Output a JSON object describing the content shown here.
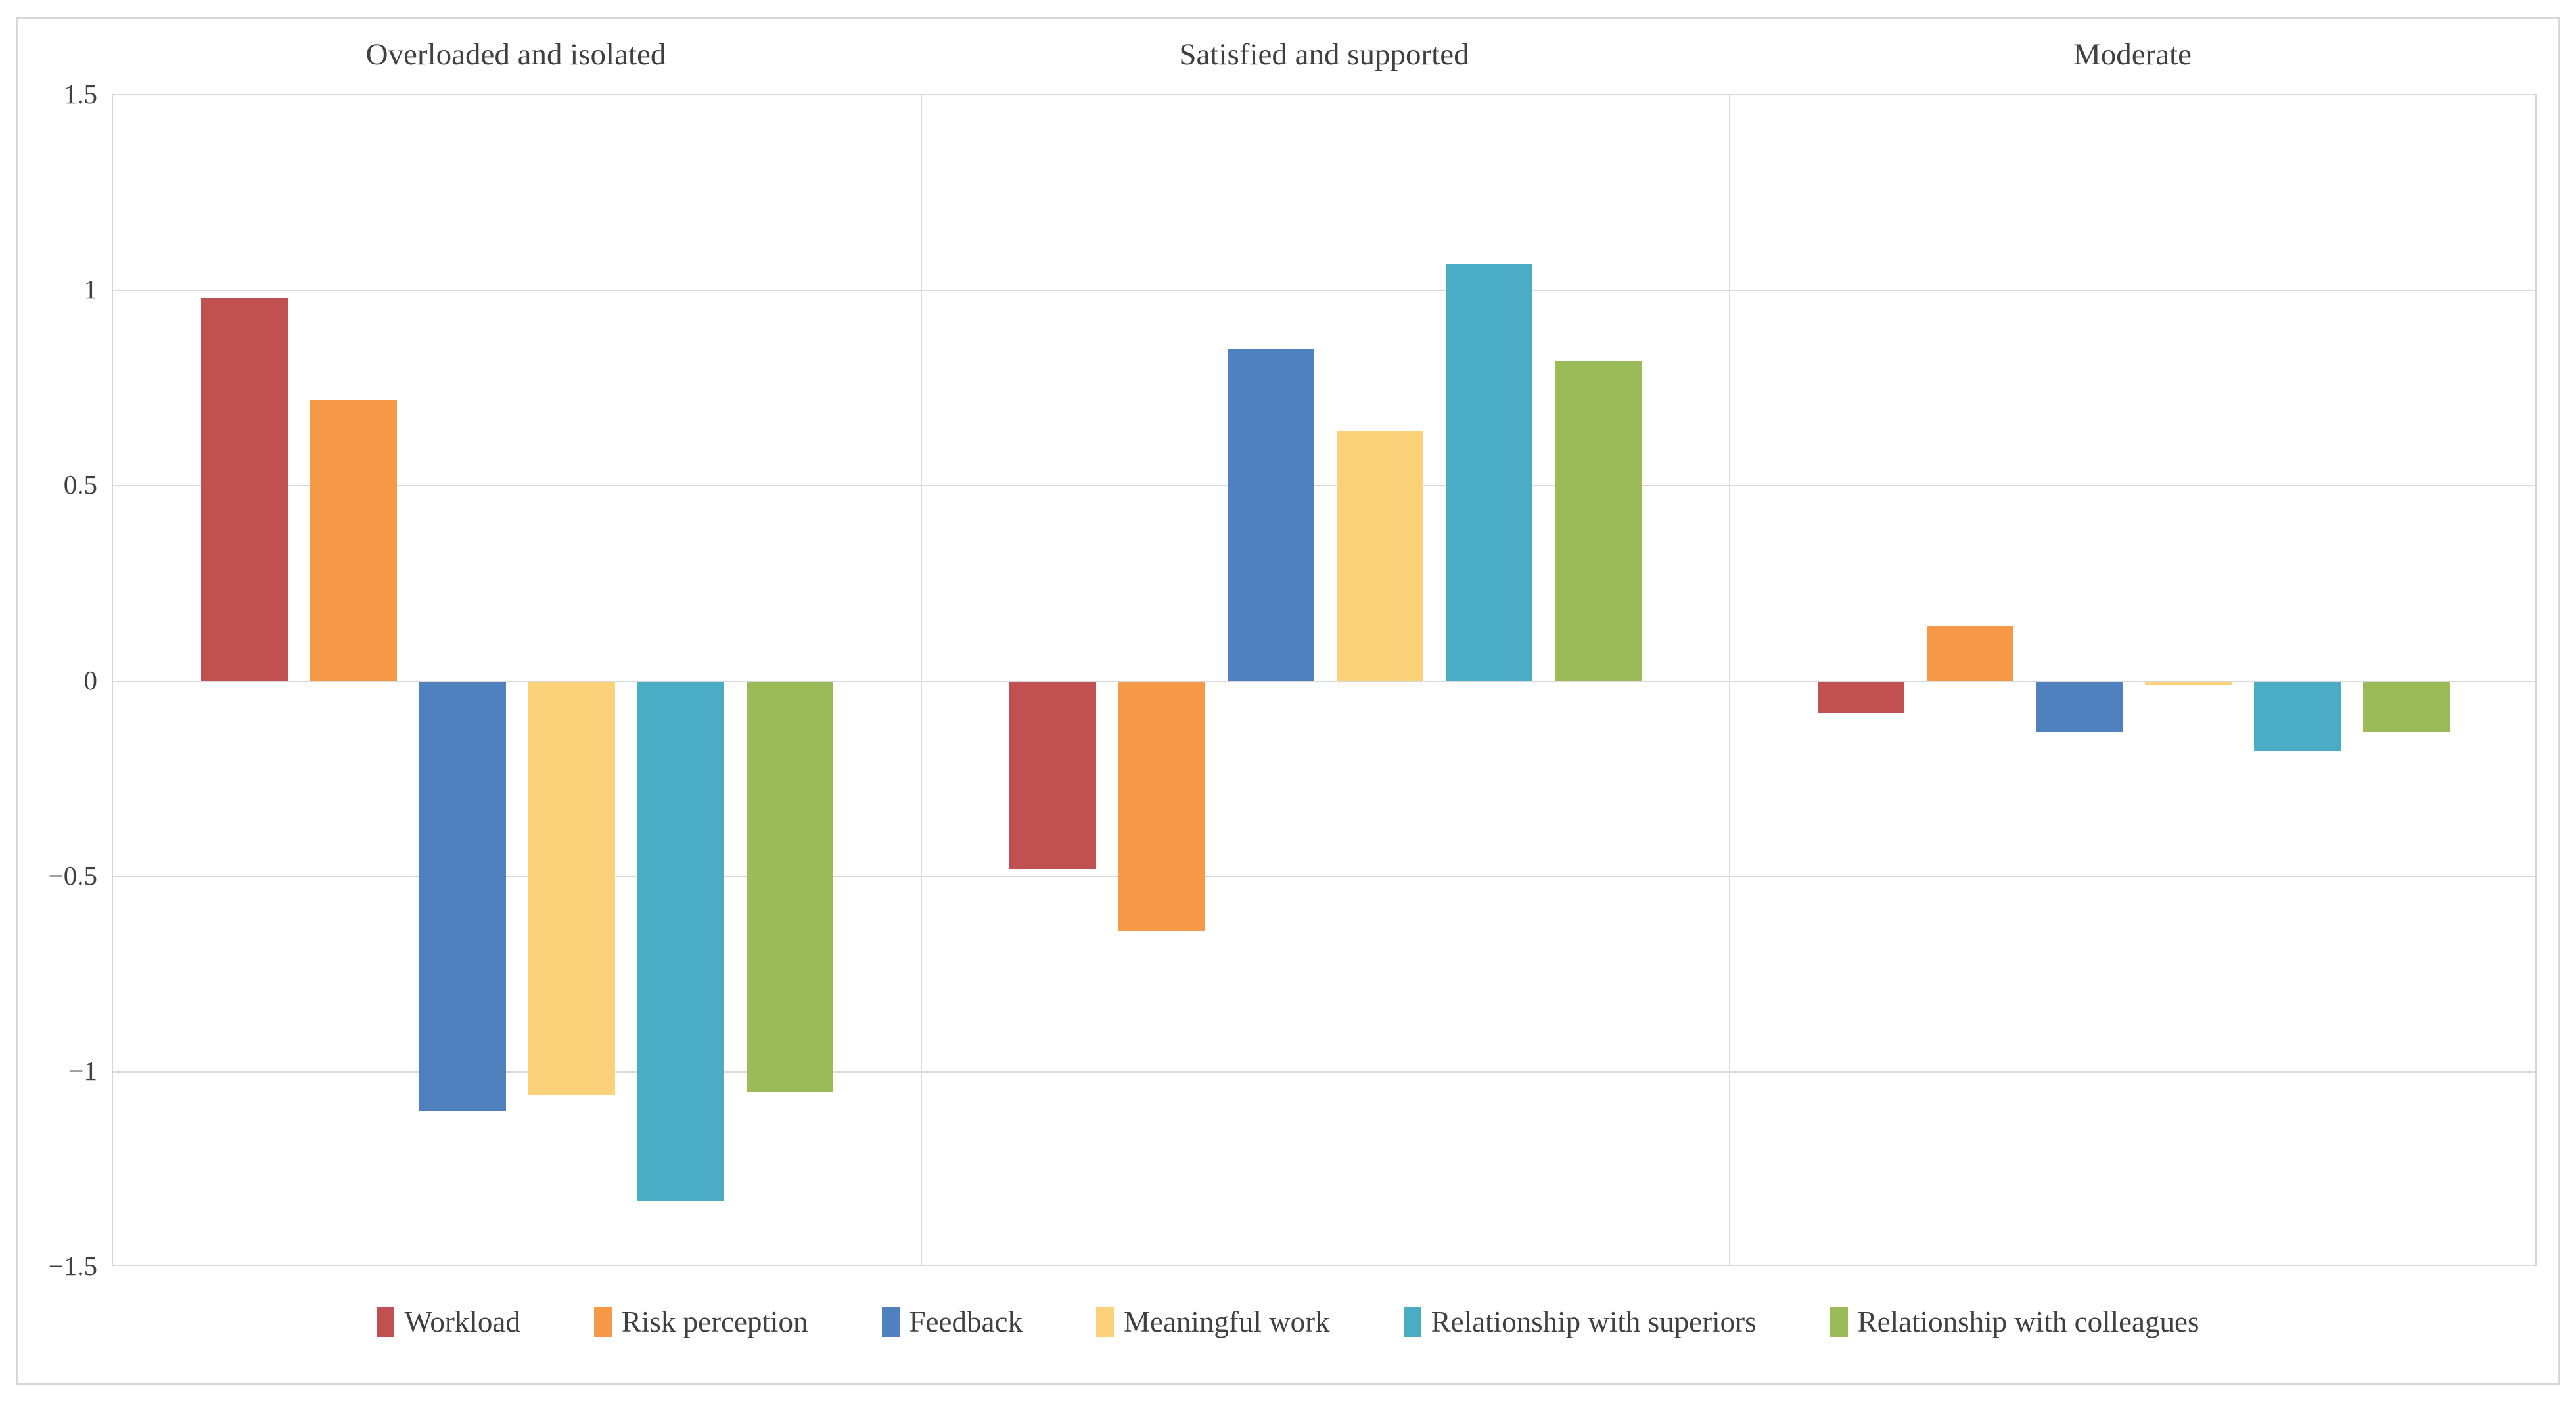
{
  "figure": {
    "background": "#ffffff",
    "border_color": "#d8d8d8",
    "gridline_color": "#d9d9d9",
    "text_color": "#404040"
  },
  "y_axis": {
    "tick_labels": [
      "1.5",
      "1",
      "0.5",
      "0",
      "−0.5",
      "−1",
      "−1.5"
    ],
    "tick_values": [
      1.5,
      1.0,
      0.5,
      0.0,
      -0.5,
      -1.0,
      -1.5
    ]
  },
  "legend": {
    "position": "bottom",
    "items": [
      {
        "label": "Workload",
        "color": "#C05150"
      },
      {
        "label": "Risk perception",
        "color": "#F69948"
      },
      {
        "label": "Feedback",
        "color": "#4E81BD"
      },
      {
        "label": "Meaningful work",
        "color": "#FBD27A"
      },
      {
        "label": "Relationship with superiors",
        "color": "#4AACC5"
      },
      {
        "label": "Relationship with colleagues",
        "color": "#9BBB59"
      }
    ]
  },
  "chart_data": {
    "type": "bar",
    "categories": [
      "Overloaded and isolated",
      "Satisfied and supported",
      "Moderate"
    ],
    "series": [
      {
        "name": "Workload",
        "color": "#C05150",
        "values": [
          0.98,
          -0.48,
          -0.08
        ]
      },
      {
        "name": "Risk perception",
        "color": "#F69948",
        "values": [
          0.72,
          -0.64,
          0.14
        ]
      },
      {
        "name": "Feedback",
        "color": "#4E81BD",
        "values": [
          -1.1,
          0.85,
          -0.13
        ]
      },
      {
        "name": "Meaningful work",
        "color": "#FBD27A",
        "values": [
          -1.06,
          0.64,
          -0.01
        ]
      },
      {
        "name": "Relationship with superiors",
        "color": "#4AACC5",
        "values": [
          -1.33,
          1.07,
          -0.18
        ]
      },
      {
        "name": "Relationship with colleagues",
        "color": "#9BBB59",
        "values": [
          -1.05,
          0.82,
          -0.13
        ]
      }
    ],
    "title": "",
    "xlabel": "",
    "ylabel": "",
    "ylim": [
      -1.5,
      1.5
    ],
    "ytick_step": 0.5,
    "grid": true,
    "legend_position": "bottom"
  }
}
